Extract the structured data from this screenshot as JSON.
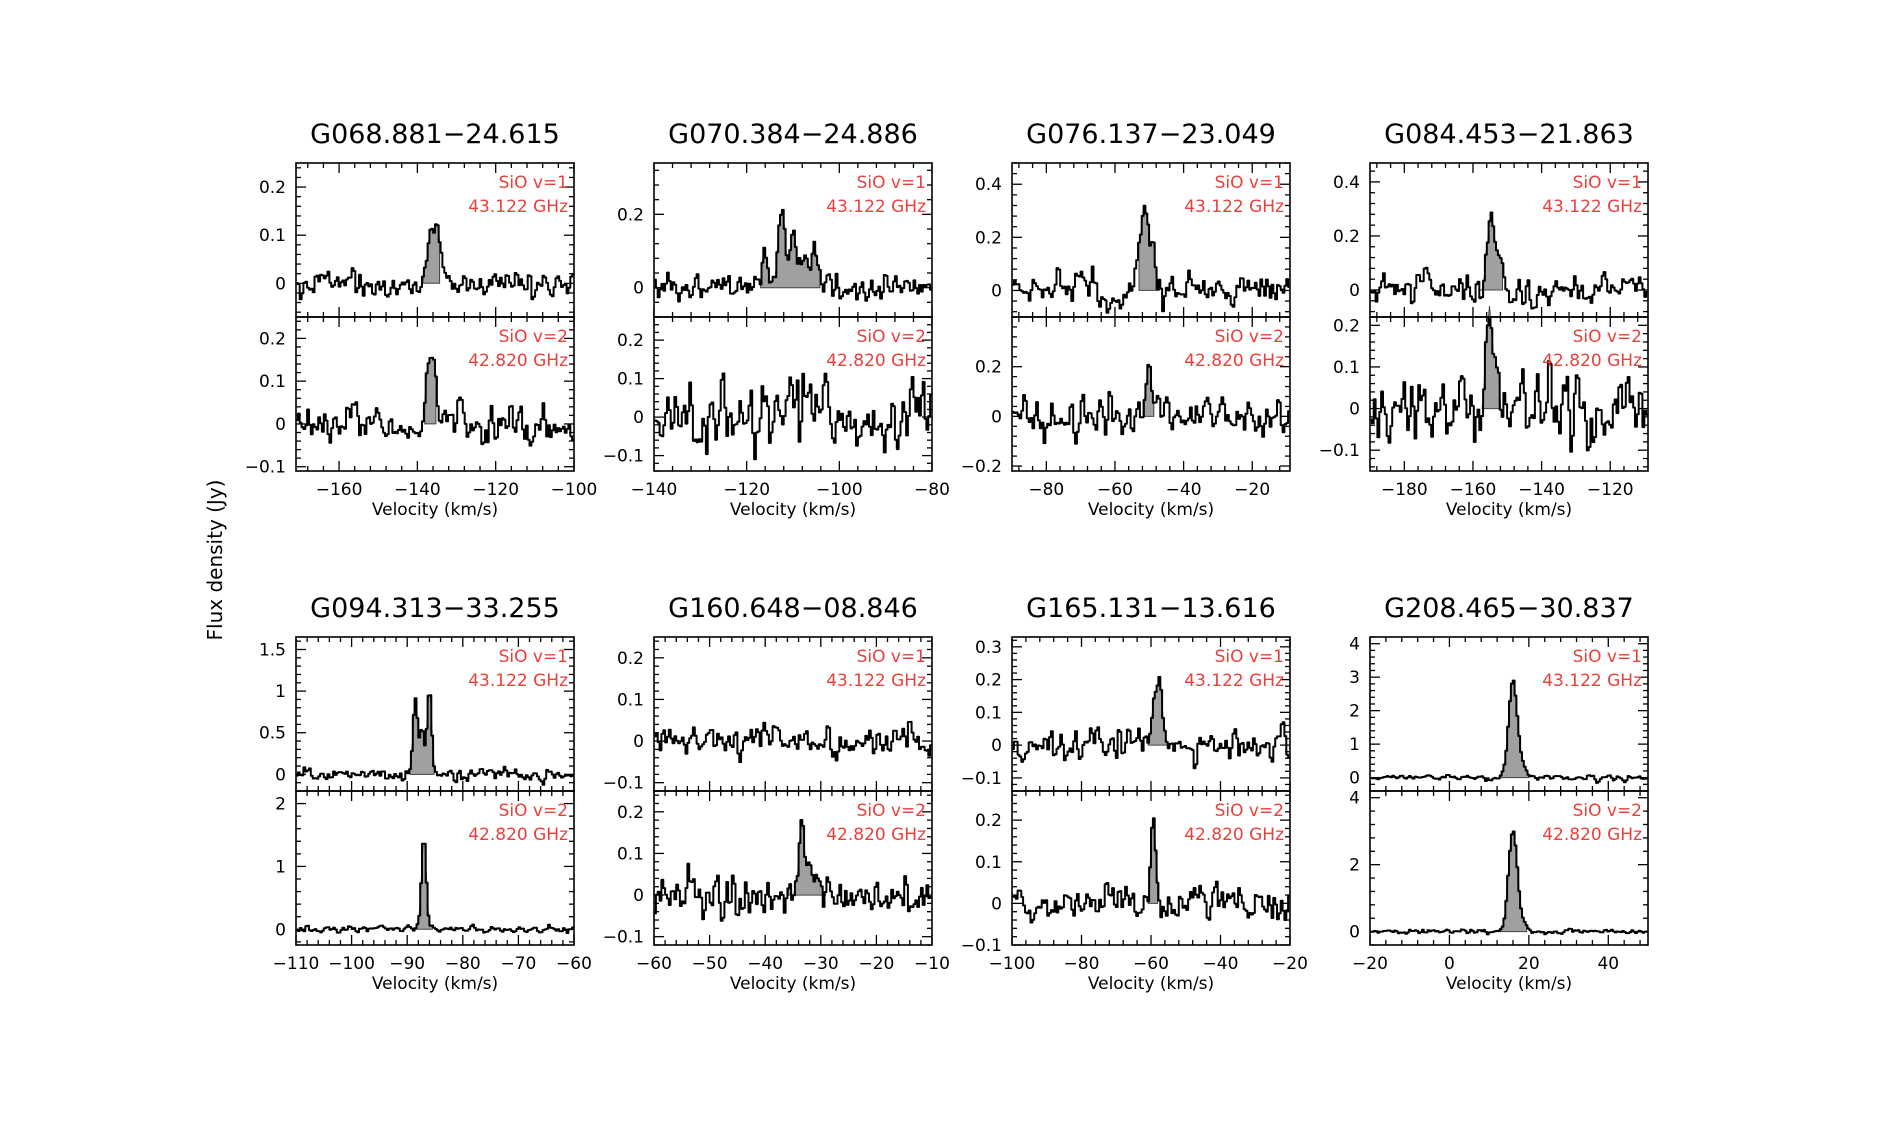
{
  "figure": {
    "ylabel": "Flux density (Jy)"
  },
  "chart_data": [
    {
      "type": "line",
      "title": "G068.881−24.615",
      "xlabel": "Velocity (km/s)",
      "xlim": [
        -171,
        -100
      ],
      "xticks": [
        -160,
        -140,
        -120,
        -100
      ],
      "panels": [
        {
          "name": "SiO v=1",
          "freq": "43.122 GHz",
          "ylim": [
            -0.07,
            0.25
          ],
          "yticks": [
            0,
            0.1,
            0.2
          ],
          "noise": 0.015,
          "seed": 11,
          "fill_range": [
            -139,
            -134
          ],
          "peaks": [
            {
              "v": -135.5,
              "a": 0.15,
              "w": 1.4
            }
          ]
        },
        {
          "name": "SiO v=2",
          "freq": "42.820 GHz",
          "ylim": [
            -0.11,
            0.25
          ],
          "yticks": [
            -0.1,
            0,
            0.1,
            0.2
          ],
          "noise": 0.022,
          "seed": 12,
          "fill_range": [
            -138.5,
            -135
          ],
          "peaks": [
            {
              "v": -136.5,
              "a": 0.16,
              "w": 1.0
            }
          ]
        }
      ]
    },
    {
      "type": "line",
      "title": "G070.384−24.886",
      "xlabel": "Velocity (km/s)",
      "xlim": [
        -140,
        -80
      ],
      "xticks": [
        -140,
        -120,
        -100,
        -80
      ],
      "panels": [
        {
          "name": "SiO v=1",
          "freq": "43.122 GHz",
          "ylim": [
            -0.08,
            0.34
          ],
          "yticks": [
            0,
            0.2
          ],
          "noise": 0.02,
          "seed": 21,
          "fill_range": [
            -117,
            -104
          ],
          "peaks": [
            {
              "v": -116,
              "a": 0.08,
              "w": 0.8
            },
            {
              "v": -112.5,
              "a": 0.22,
              "w": 0.9
            },
            {
              "v": -110,
              "a": 0.16,
              "w": 0.8
            },
            {
              "v": -107.5,
              "a": 0.1,
              "w": 0.8
            },
            {
              "v": -105.5,
              "a": 0.11,
              "w": 0.8
            }
          ]
        },
        {
          "name": "SiO v=2",
          "freq": "42.820 GHz",
          "ylim": [
            -0.14,
            0.26
          ],
          "yticks": [
            -0.1,
            0,
            0.1,
            0.2
          ],
          "noise": 0.045,
          "seed": 22,
          "fill_range": [],
          "peaks": [
            {
              "v": -107,
              "a": 0.07,
              "w": 4
            }
          ]
        }
      ]
    },
    {
      "type": "line",
      "title": "G076.137−23.049",
      "xlabel": "Velocity (km/s)",
      "xlim": [
        -90,
        -9
      ],
      "xticks": [
        -80,
        -60,
        -40,
        -20
      ],
      "panels": [
        {
          "name": "SiO v=1",
          "freq": "43.122 GHz",
          "ylim": [
            -0.1,
            0.48
          ],
          "yticks": [
            0,
            0.2,
            0.4
          ],
          "noise": 0.035,
          "seed": 31,
          "fill_range": [
            -53.5,
            -47
          ],
          "peaks": [
            {
              "v": -51.5,
              "a": 0.3,
              "w": 0.9
            },
            {
              "v": -49,
              "a": 0.15,
              "w": 1.0
            }
          ]
        },
        {
          "name": "SiO v=2",
          "freq": "42.820 GHz",
          "ylim": [
            -0.22,
            0.4
          ],
          "yticks": [
            -0.2,
            0,
            0.2
          ],
          "noise": 0.04,
          "seed": 32,
          "fill_range": [
            -51.5,
            -48.5
          ],
          "peaks": [
            {
              "v": -50,
              "a": 0.24,
              "w": 0.8
            }
          ]
        }
      ]
    },
    {
      "type": "line",
      "title": "G084.453−21.863",
      "xlabel": "Velocity (km/s)",
      "xlim": [
        -190,
        -109
      ],
      "xticks": [
        -180,
        -160,
        -140,
        -120
      ],
      "panels": [
        {
          "name": "SiO v=1",
          "freq": "43.122 GHz",
          "ylim": [
            -0.1,
            0.47
          ],
          "yticks": [
            0,
            0.2,
            0.4
          ],
          "noise": 0.03,
          "seed": 41,
          "fill_range": [
            -158,
            -151
          ],
          "peaks": [
            {
              "v": -155,
              "a": 0.26,
              "w": 0.9
            },
            {
              "v": -152.5,
              "a": 0.1,
              "w": 1.0
            }
          ]
        },
        {
          "name": "SiO v=2",
          "freq": "42.820 GHz",
          "ylim": [
            -0.15,
            0.22
          ],
          "yticks": [
            -0.1,
            0,
            0.1,
            0.2
          ],
          "noise": 0.04,
          "seed": 42,
          "fill_range": [
            -157.5,
            -151.5
          ],
          "peaks": [
            {
              "v": -155.5,
              "a": 0.13,
              "w": 0.9
            },
            {
              "v": -153,
              "a": 0.07,
              "w": 0.9
            }
          ]
        }
      ]
    },
    {
      "type": "line",
      "title": "G094.313−33.255",
      "xlabel": "Velocity (km/s)",
      "xlim": [
        -110,
        -60
      ],
      "xticks": [
        -110,
        -100,
        -90,
        -80,
        -70,
        -60
      ],
      "panels": [
        {
          "name": "SiO v=1",
          "freq": "43.122 GHz",
          "ylim": [
            -0.2,
            1.65
          ],
          "yticks": [
            0,
            0.5,
            1,
            1.5
          ],
          "noise": 0.04,
          "seed": 51,
          "fill_range": [
            -89.5,
            -85
          ],
          "peaks": [
            {
              "v": -88.5,
              "a": 0.9,
              "w": 0.6
            },
            {
              "v": -86,
              "a": 1.05,
              "w": 0.6
            },
            {
              "v": -87.3,
              "a": 0.55,
              "w": 0.5
            }
          ]
        },
        {
          "name": "SiO v=2",
          "freq": "42.820 GHz",
          "ylim": [
            -0.25,
            2.2
          ],
          "yticks": [
            0,
            1,
            2
          ],
          "noise": 0.03,
          "seed": 52,
          "fill_range": [
            -88.5,
            -85.5
          ],
          "peaks": [
            {
              "v": -87,
              "a": 1.45,
              "w": 0.6
            }
          ]
        }
      ]
    },
    {
      "type": "line",
      "title": "G160.648−08.846",
      "xlabel": "Velocity (km/s)",
      "xlim": [
        -60,
        -10
      ],
      "xticks": [
        -60,
        -50,
        -40,
        -30,
        -20,
        -10
      ],
      "panels": [
        {
          "name": "SiO v=1",
          "freq": "43.122 GHz",
          "ylim": [
            -0.12,
            0.25
          ],
          "yticks": [
            -0.1,
            0,
            0.1,
            0.2
          ],
          "noise": 0.017,
          "seed": 61,
          "fill_range": [],
          "peaks": []
        },
        {
          "name": "SiO v=2",
          "freq": "42.820 GHz",
          "ylim": [
            -0.12,
            0.25
          ],
          "yticks": [
            -0.1,
            0,
            0.1,
            0.2
          ],
          "noise": 0.025,
          "seed": 62,
          "fill_range": [
            -36,
            -29
          ],
          "peaks": [
            {
              "v": -33.5,
              "a": 0.17,
              "w": 0.8
            },
            {
              "v": -31.5,
              "a": 0.06,
              "w": 1.0
            }
          ]
        }
      ]
    },
    {
      "type": "line",
      "title": "G165.131−13.616",
      "xlabel": "Velocity (km/s)",
      "xlim": [
        -100,
        -20
      ],
      "xticks": [
        -100,
        -80,
        -60,
        -40,
        -20
      ],
      "panels": [
        {
          "name": "SiO v=1",
          "freq": "43.122 GHz",
          "ylim": [
            -0.14,
            0.33
          ],
          "yticks": [
            -0.1,
            0,
            0.1,
            0.2,
            0.3
          ],
          "noise": 0.025,
          "seed": 71,
          "fill_range": [
            -61,
            -54
          ],
          "peaks": [
            {
              "v": -58,
              "a": 0.2,
              "w": 1.0
            },
            {
              "v": -55.5,
              "a": 0.04,
              "w": 1.0
            }
          ]
        },
        {
          "name": "SiO v=2",
          "freq": "42.820 GHz",
          "ylim": [
            -0.1,
            0.27
          ],
          "yticks": [
            -0.1,
            0,
            0.1,
            0.2
          ],
          "noise": 0.025,
          "seed": 72,
          "fill_range": [
            -61,
            -58
          ],
          "peaks": [
            {
              "v": -59.5,
              "a": 0.18,
              "w": 0.7
            }
          ]
        }
      ]
    },
    {
      "type": "line",
      "title": "G208.465−30.837",
      "xlabel": "Velocity (km/s)",
      "xlim": [
        -20,
        50
      ],
      "xticks": [
        -20,
        0,
        20,
        40
      ],
      "panels": [
        {
          "name": "SiO v=1",
          "freq": "43.122 GHz",
          "ylim": [
            -0.4,
            4.2
          ],
          "yticks": [
            0,
            1,
            2,
            3,
            4
          ],
          "noise": 0.04,
          "seed": 81,
          "fill_range": [
            12.5,
            20
          ],
          "peaks": [
            {
              "v": 16,
              "a": 2.9,
              "w": 1.1
            },
            {
              "v": 18.5,
              "a": 0.25,
              "w": 1.0
            }
          ]
        },
        {
          "name": "SiO v=2",
          "freq": "42.820 GHz",
          "ylim": [
            -0.4,
            4.2
          ],
          "yticks": [
            0,
            2,
            4
          ],
          "noise": 0.04,
          "seed": 82,
          "fill_range": [
            12.5,
            19.5
          ],
          "peaks": [
            {
              "v": 16,
              "a": 3.0,
              "w": 1.1
            },
            {
              "v": 18.5,
              "a": 0.2,
              "w": 1.0
            }
          ]
        }
      ]
    }
  ]
}
